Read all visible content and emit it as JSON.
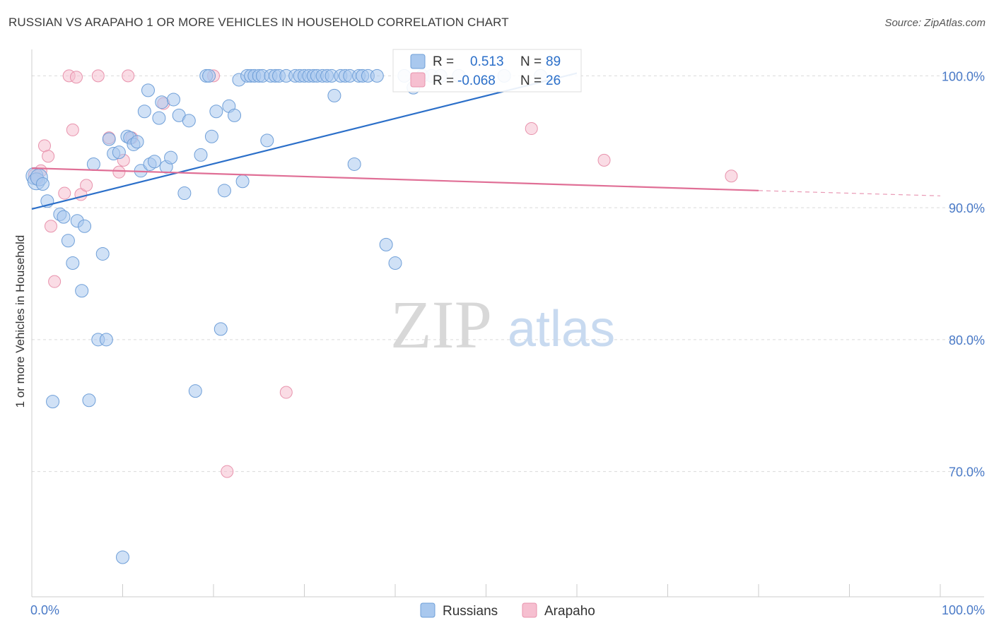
{
  "title": "RUSSIAN VS ARAPAHO 1 OR MORE VEHICLES IN HOUSEHOLD CORRELATION CHART",
  "source": "Source: ZipAtlas.com",
  "watermark": {
    "zip": "ZIP",
    "atlas": "atlas"
  },
  "colors": {
    "russians_fill": "#a9c8ee",
    "russians_stroke": "#6f9fd8",
    "russians_line": "#2b6fc9",
    "arapaho_fill": "#f6bfd0",
    "arapaho_stroke": "#e893ad",
    "arapaho_line": "#e06f96",
    "tick_text": "#4a7ac7",
    "grid": "#d9d9d9"
  },
  "chart_data": {
    "type": "scatter",
    "xlabel": "",
    "ylabel": "1 or more Vehicles in Household",
    "xlim": [
      0,
      100
    ],
    "ylim": [
      60.5,
      102
    ],
    "x_ticks": [
      "0.0%",
      "100.0%"
    ],
    "y_ticks": [
      {
        "value": 100,
        "label": "100.0%"
      },
      {
        "value": 90,
        "label": "90.0%"
      },
      {
        "value": 80,
        "label": "80.0%"
      },
      {
        "value": 70,
        "label": "70.0%"
      }
    ],
    "grid": true,
    "legend_stats": [
      {
        "r_label": "R =",
        "r_value": "0.513",
        "n_label": "N =",
        "n_value": "89"
      },
      {
        "r_label": "R =",
        "r_value": "-0.068",
        "n_label": "N =",
        "n_value": "26"
      }
    ],
    "series": [
      {
        "name": "Russians",
        "trend": {
          "x0": 0,
          "y0": 89.9,
          "x1": 60,
          "y1": 100.2
        },
        "points": [
          [
            0.3,
            92.4
          ],
          [
            0.5,
            92.0
          ],
          [
            0.8,
            92.3
          ],
          [
            1.2,
            91.8
          ],
          [
            1.7,
            90.5
          ],
          [
            2.3,
            75.3
          ],
          [
            3.1,
            89.5
          ],
          [
            3.5,
            89.3
          ],
          [
            4.0,
            87.5
          ],
          [
            4.5,
            85.8
          ],
          [
            5.0,
            89.0
          ],
          [
            5.5,
            83.7
          ],
          [
            5.8,
            88.6
          ],
          [
            6.3,
            75.4
          ],
          [
            6.8,
            93.3
          ],
          [
            7.3,
            80.0
          ],
          [
            7.8,
            86.5
          ],
          [
            8.2,
            80.0
          ],
          [
            8.5,
            95.2
          ],
          [
            9.0,
            94.1
          ],
          [
            9.6,
            94.2
          ],
          [
            10.0,
            63.5
          ],
          [
            10.5,
            95.4
          ],
          [
            10.8,
            95.3
          ],
          [
            11.2,
            94.8
          ],
          [
            11.6,
            95.0
          ],
          [
            12.0,
            92.8
          ],
          [
            12.4,
            97.3
          ],
          [
            12.8,
            98.9
          ],
          [
            13.0,
            93.3
          ],
          [
            13.5,
            93.5
          ],
          [
            14.0,
            96.8
          ],
          [
            14.3,
            98.0
          ],
          [
            14.8,
            93.1
          ],
          [
            15.3,
            93.8
          ],
          [
            15.6,
            98.2
          ],
          [
            16.2,
            97.0
          ],
          [
            16.8,
            91.1
          ],
          [
            17.3,
            96.6
          ],
          [
            18.0,
            76.1
          ],
          [
            18.6,
            94.0
          ],
          [
            19.2,
            100.0
          ],
          [
            19.5,
            100.0
          ],
          [
            19.8,
            95.4
          ],
          [
            20.3,
            97.3
          ],
          [
            20.8,
            80.8
          ],
          [
            21.2,
            91.3
          ],
          [
            21.7,
            97.7
          ],
          [
            22.3,
            97.0
          ],
          [
            22.8,
            99.7
          ],
          [
            23.2,
            92.0
          ],
          [
            23.7,
            100.0
          ],
          [
            24.1,
            100.0
          ],
          [
            24.5,
            100.0
          ],
          [
            25.0,
            100.0
          ],
          [
            25.4,
            100.0
          ],
          [
            25.9,
            95.1
          ],
          [
            26.3,
            100.0
          ],
          [
            26.8,
            100.0
          ],
          [
            27.2,
            100.0
          ],
          [
            28.0,
            100.0
          ],
          [
            29.0,
            100.0
          ],
          [
            29.5,
            100.0
          ],
          [
            30.0,
            100.0
          ],
          [
            30.5,
            100.0
          ],
          [
            31.0,
            100.0
          ],
          [
            31.4,
            100.0
          ],
          [
            32.0,
            100.0
          ],
          [
            32.5,
            100.0
          ],
          [
            33.0,
            100.0
          ],
          [
            33.3,
            98.5
          ],
          [
            34.0,
            100.0
          ],
          [
            34.5,
            100.0
          ],
          [
            35.0,
            100.0
          ],
          [
            35.5,
            93.3
          ],
          [
            36.0,
            100.0
          ],
          [
            36.4,
            100.0
          ],
          [
            37.0,
            100.0
          ],
          [
            38.0,
            100.0
          ],
          [
            39.0,
            87.2
          ],
          [
            40.0,
            85.8
          ],
          [
            41.0,
            100.0
          ],
          [
            42.0,
            99.1
          ],
          [
            43.0,
            100.0
          ],
          [
            44.0,
            100.0
          ],
          [
            45.0,
            100.0
          ],
          [
            47.0,
            100.0
          ],
          [
            52.0,
            100.0
          ],
          [
            56.0,
            100.0
          ]
        ]
      },
      {
        "name": "Arapaho",
        "trend": {
          "x0": 0,
          "y0": 93.0,
          "x1": 80,
          "y1": 91.3,
          "x_dash_end": 100,
          "y_dash_end": 90.9
        },
        "points": [
          [
            0.3,
            92.5
          ],
          [
            0.6,
            92.2
          ],
          [
            1.0,
            92.8
          ],
          [
            1.4,
            94.7
          ],
          [
            1.8,
            93.9
          ],
          [
            2.1,
            88.6
          ],
          [
            2.5,
            84.4
          ],
          [
            3.6,
            91.1
          ],
          [
            4.1,
            100.0
          ],
          [
            4.5,
            95.9
          ],
          [
            4.9,
            99.9
          ],
          [
            5.4,
            91.0
          ],
          [
            6.0,
            91.7
          ],
          [
            7.3,
            100.0
          ],
          [
            8.5,
            95.3
          ],
          [
            9.6,
            92.7
          ],
          [
            10.1,
            93.6
          ],
          [
            10.6,
            100.0
          ],
          [
            11.0,
            95.3
          ],
          [
            14.5,
            97.9
          ],
          [
            20.0,
            100.0
          ],
          [
            21.5,
            70.0
          ],
          [
            28.0,
            76.0
          ],
          [
            55.0,
            96.0
          ],
          [
            63.0,
            93.6
          ],
          [
            77.0,
            92.4
          ]
        ]
      }
    ],
    "legend_placement": "bottom-center"
  }
}
